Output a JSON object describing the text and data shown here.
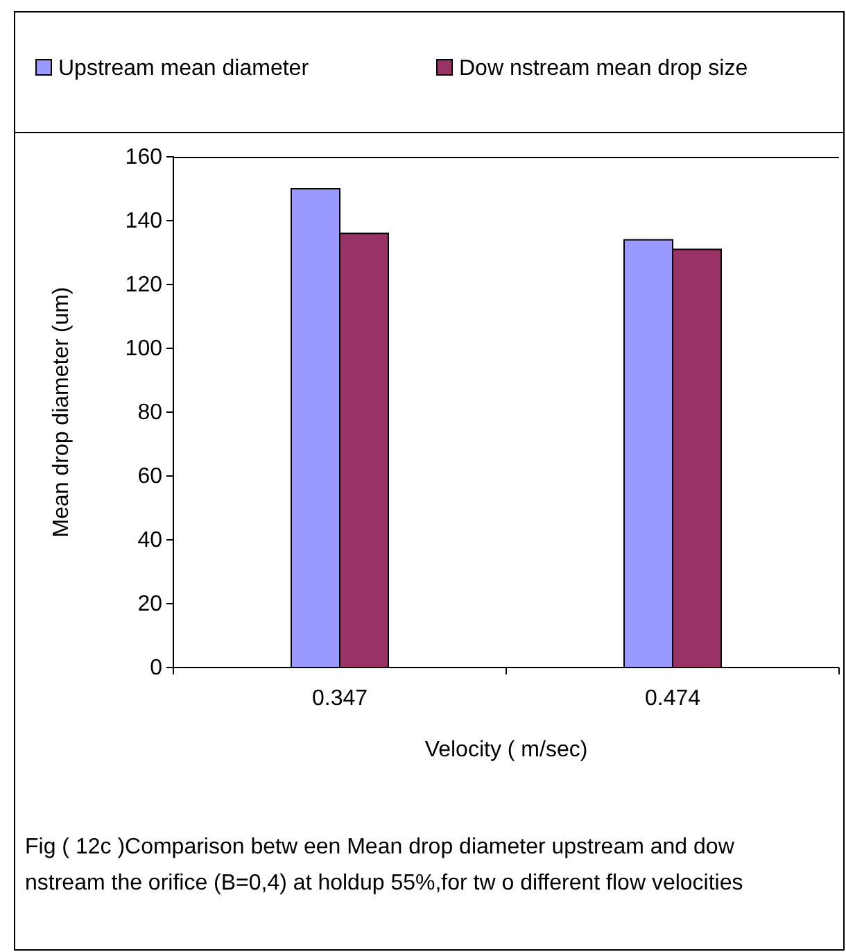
{
  "chart_data": {
    "type": "bar",
    "xlabel": "Velocity ( m/sec)",
    "ylabel": "Mean drop diameter (um)",
    "categories": [
      "0.347",
      "0.474"
    ],
    "series": [
      {
        "name": "Upstream mean diameter",
        "color": "#9999ff",
        "values": [
          150,
          134
        ]
      },
      {
        "name": "Dow nstream mean drop size",
        "color": "#993366",
        "values": [
          136,
          131
        ]
      }
    ],
    "ylim": [
      0,
      160
    ],
    "yticks": [
      0,
      20,
      40,
      60,
      80,
      100,
      120,
      140,
      160
    ],
    "grid": false,
    "legend": "top",
    "annotations": [
      "Fig ( 12c   )Comparison betw een  Mean drop diameter upstream and dow nstream the orifice (B=0,4) at holdup 55%,for tw o different flow  velocities"
    ]
  }
}
